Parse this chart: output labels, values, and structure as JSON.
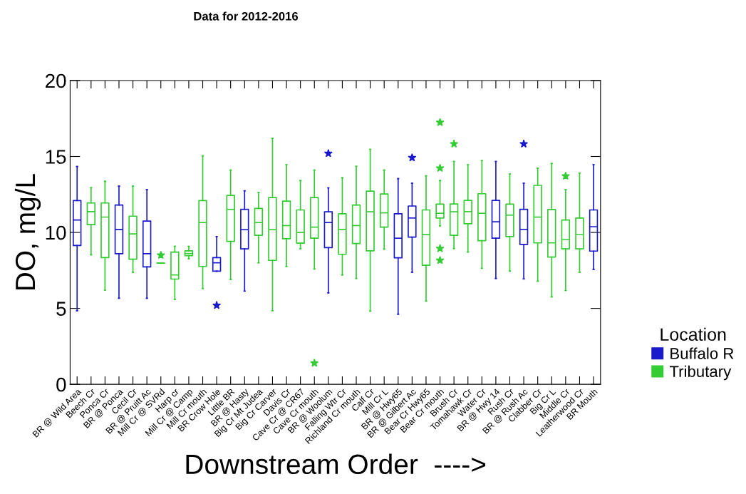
{
  "chart_data": {
    "type": "box",
    "title": "Data for 2012-2016",
    "xlabel": "Downstream Order  ---->",
    "ylabel": "DO, mg/L",
    "legend_title": "Location",
    "legend": "right",
    "categories": [
      "BR @ Wild Area",
      "Beech Cr",
      "Ponca Cr",
      "BR @ Ponca",
      "Cecil Cr",
      "BR @ Pruitt Ac",
      "Mill Cr @ SVRd",
      "Harp cr",
      "Mill Cr @ Camp",
      "Mill Cr mouth",
      "BR Crow Hole",
      "Little BR",
      "BR @ Hasty",
      "Big Cr Mt Judea",
      "Big Cr Carver",
      "Davis Cr",
      "Cave Cr @ CR67",
      "Cave Cr mouth",
      "BR @ Woolum",
      "Falling Wtr Cr",
      "Richland Cr mouth",
      "Calf Cr",
      "Mill Cr L",
      "BR @ Hwy65",
      "BR @ Gilbert Ac",
      "Bear Cr Hwy65",
      "Bear Cr mouth",
      "Brush Cr",
      "Tomahawk Cr",
      "Water Cr",
      "BR @ Hwy 14",
      "Rush Cr",
      "BR @ Rush Ac",
      "Clabber Cr",
      "Big Cr L",
      "Middle Cr",
      "Leatherwood Cr",
      "BR Mouth"
    ],
    "ylim": [
      0,
      20
    ],
    "yticks": [
      0,
      5,
      10,
      15,
      20
    ],
    "series": [
      {
        "name": "Buffalo R",
        "color": "#1a1acc",
        "boxes": [
          {
            "low": 4.85,
            "q1": 9.14,
            "median": 10.82,
            "q3": 12.1,
            "high": 14.34
          },
          null,
          null,
          {
            "low": 5.67,
            "q1": 8.6,
            "median": 10.2,
            "q3": 11.8,
            "high": 13.05
          },
          null,
          {
            "low": 5.67,
            "q1": 7.73,
            "median": 8.6,
            "q3": 10.75,
            "high": 12.81
          },
          null,
          null,
          null,
          null,
          {
            "low": 7.45,
            "q1": 7.45,
            "median": 8.0,
            "q3": 8.34,
            "high": 9.73,
            "outliers": [
              5.2
            ]
          },
          null,
          {
            "low": 6.14,
            "q1": 8.92,
            "median": 10.18,
            "q3": 11.52,
            "high": 12.74
          },
          null,
          null,
          null,
          null,
          null,
          {
            "low": 6.02,
            "q1": 9.0,
            "median": 10.65,
            "q3": 11.36,
            "high": 12.93,
            "outliers": [
              15.2
            ]
          },
          null,
          null,
          null,
          null,
          {
            "low": 4.62,
            "q1": 8.33,
            "median": 9.62,
            "q3": 11.23,
            "high": 13.54
          },
          {
            "low": 7.38,
            "q1": 9.69,
            "median": 10.95,
            "q3": 11.74,
            "high": 13.24,
            "outliers": [
              14.92
            ]
          },
          null,
          null,
          null,
          null,
          null,
          {
            "low": 6.97,
            "q1": 9.62,
            "median": 10.7,
            "q3": 12.11,
            "high": 14.67
          },
          null,
          {
            "low": 6.94,
            "q1": 9.21,
            "median": 10.2,
            "q3": 11.52,
            "high": 13.24,
            "outliers": [
              15.83
            ]
          },
          null,
          null,
          null,
          null,
          {
            "low": 7.57,
            "q1": 8.77,
            "median": 10.38,
            "q3": 11.48,
            "high": 14.46
          }
        ]
      },
      {
        "name": "Tributary",
        "color": "#33cc33",
        "boxes": [
          null,
          {
            "low": 8.53,
            "q1": 10.51,
            "median": 11.37,
            "q3": 11.94,
            "high": 12.94
          },
          {
            "low": 6.2,
            "q1": 8.34,
            "median": 11.01,
            "q3": 11.94,
            "high": 13.36
          },
          null,
          {
            "low": 7.38,
            "q1": 8.24,
            "median": 9.9,
            "q3": 11.07,
            "high": 13.05
          },
          null,
          {
            "low": 7.98,
            "q1": 7.98,
            "median": 7.98,
            "q3": 7.98,
            "high": 7.98,
            "outliers": [
              8.5
            ]
          },
          {
            "low": 5.6,
            "q1": 6.93,
            "median": 7.2,
            "q3": 8.71,
            "high": 9.08
          },
          {
            "low": 8.27,
            "q1": 8.47,
            "median": 8.61,
            "q3": 8.79,
            "high": 9.08
          },
          {
            "low": 6.31,
            "q1": 7.76,
            "median": 10.65,
            "q3": 12.1,
            "high": 15.04
          },
          null,
          {
            "low": 6.9,
            "q1": 9.41,
            "median": 11.52,
            "q3": 12.44,
            "high": 14.1
          },
          null,
          {
            "low": 8.0,
            "q1": 9.81,
            "median": 10.65,
            "q3": 11.58,
            "high": 12.63
          },
          {
            "low": 4.85,
            "q1": 8.16,
            "median": 10.18,
            "q3": 12.3,
            "high": 16.19
          },
          {
            "low": 7.76,
            "q1": 9.59,
            "median": 10.45,
            "q3": 12.06,
            "high": 14.46
          },
          {
            "low": 8.92,
            "q1": 9.29,
            "median": 10.0,
            "q3": 11.48,
            "high": 13.41
          },
          {
            "low": 7.59,
            "q1": 9.62,
            "median": 10.35,
            "q3": 12.3,
            "high": 14.1,
            "outliers": [
              1.4
            ]
          },
          null,
          {
            "low": 7.2,
            "q1": 8.56,
            "median": 10.2,
            "q3": 11.23,
            "high": 13.6
          },
          {
            "low": 6.97,
            "q1": 9.27,
            "median": 10.45,
            "q3": 11.8,
            "high": 14.35
          },
          {
            "low": 4.82,
            "q1": 8.79,
            "median": 11.36,
            "q3": 12.72,
            "high": 15.47
          },
          {
            "low": 8.9,
            "q1": 10.35,
            "median": 11.29,
            "q3": 12.53,
            "high": 14.1
          },
          null,
          null,
          {
            "low": 5.48,
            "q1": 7.84,
            "median": 9.86,
            "q3": 11.48,
            "high": 13.73
          },
          {
            "low": 10.43,
            "q1": 10.95,
            "median": 11.26,
            "q3": 11.86,
            "high": 13.41,
            "outliers": [
              17.24,
              14.23,
              8.94,
              8.16
            ]
          },
          {
            "low": 8.94,
            "q1": 9.81,
            "median": 11.36,
            "q3": 11.87,
            "high": 14.67,
            "outliers": [
              15.83
            ]
          },
          {
            "low": 8.71,
            "q1": 10.57,
            "median": 11.37,
            "q3": 12.11,
            "high": 14.46
          },
          {
            "low": 7.64,
            "q1": 9.46,
            "median": 11.26,
            "q3": 12.55,
            "high": 14.73
          },
          null,
          {
            "low": 7.45,
            "q1": 9.73,
            "median": 11.14,
            "q3": 11.86,
            "high": 13.85
          },
          null,
          {
            "low": 6.79,
            "q1": 9.31,
            "median": 11.01,
            "q3": 13.1,
            "high": 14.23
          },
          {
            "low": 5.76,
            "q1": 8.38,
            "median": 9.31,
            "q3": 11.51,
            "high": 14.54
          },
          {
            "low": 6.18,
            "q1": 8.92,
            "median": 9.52,
            "q3": 10.82,
            "high": 12.81,
            "outliers": [
              13.71
            ]
          },
          {
            "low": 7.38,
            "q1": 8.92,
            "median": 9.86,
            "q3": 10.95,
            "high": 13.91
          },
          null
        ]
      }
    ]
  }
}
